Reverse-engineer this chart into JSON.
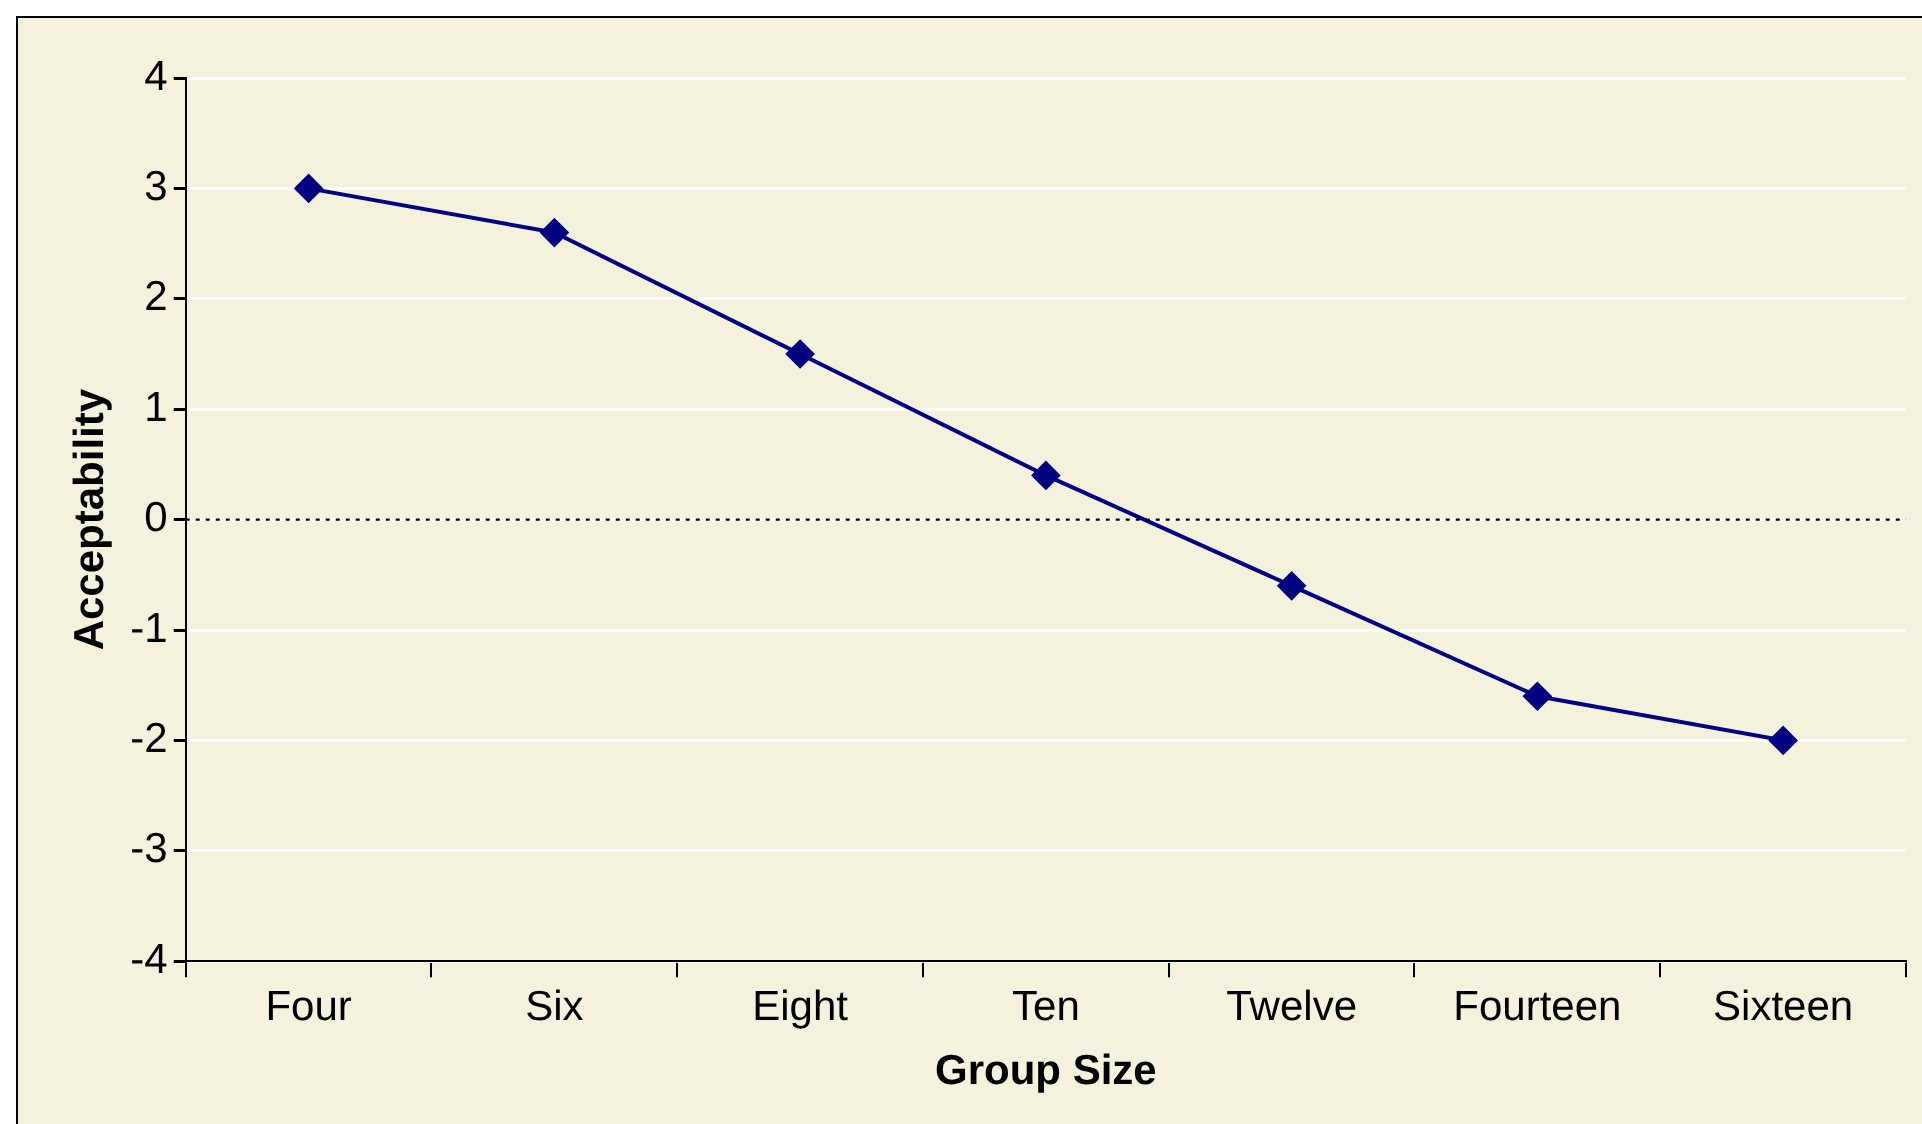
{
  "chart_data": {
    "type": "line",
    "xlabel": "Group Size",
    "ylabel": "Acceptability",
    "categories": [
      "Four",
      "Six",
      "Eight",
      "Ten",
      "Twelve",
      "Fourteen",
      "Sixteen"
    ],
    "series": [
      {
        "color": "#000080",
        "values": [
          3,
          2.6,
          1.5,
          0.4,
          -0.6,
          -1.6,
          -2.0
        ]
      }
    ],
    "ylim": [
      -4,
      4
    ],
    "yticks": [
      -4,
      -3,
      -2,
      -1,
      0,
      1,
      2,
      3,
      4
    ],
    "grid": "y",
    "marker": "diamond",
    "line_style": "solid",
    "legend": false,
    "ref_lines": [
      {
        "axis": "y",
        "value": 0,
        "color": "#000000",
        "line_style": "dotted"
      }
    ]
  }
}
